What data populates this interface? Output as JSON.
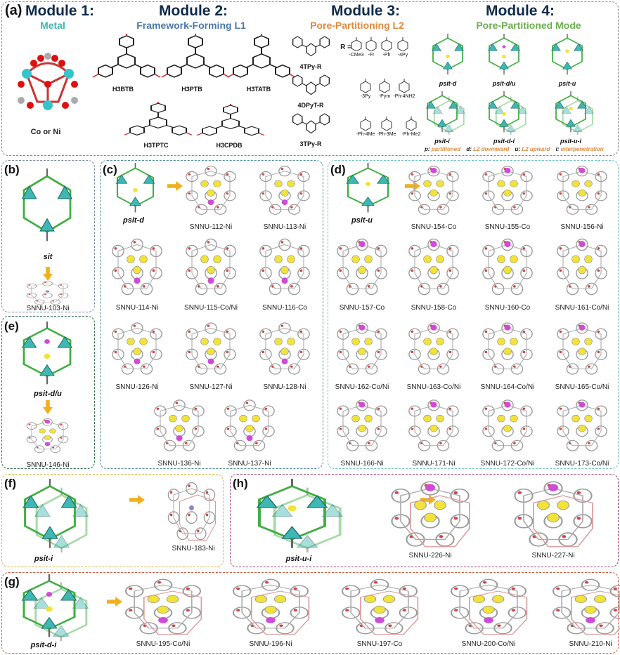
{
  "colors": {
    "module_title": "#0f2a4a",
    "metal": "#3fb8b3",
    "l1": "#4a78a8",
    "l2": "#e08a3c",
    "mode": "#6ab04c",
    "net_green": "#3fae3f",
    "cluster_teal": "#3fb8b3",
    "yellow": "#f2e33a",
    "pink": "#d04ad8",
    "arrow": "#f0b020"
  },
  "panel_a": {
    "label": "(a)",
    "module1": {
      "title": "Module 1:",
      "subtitle": "Metal",
      "metal_label": "Co or Ni"
    },
    "module2": {
      "title": "Module 2:",
      "subtitle": "Framework-Forming L1",
      "ligands": [
        "H3BTB",
        "H3PTB",
        "H3TATB",
        "H3TPTC",
        "H3CPDB"
      ]
    },
    "module3": {
      "title": "Module 3:",
      "subtitle": "Pore-Partitioning L2",
      "ligands": [
        "4TPy-R",
        "4DPyT-R",
        "3TPy-R"
      ],
      "r_prefix": "R =",
      "r_groups": [
        "-CMe3",
        "-Fr",
        "-Ph",
        "-4Py",
        "-3Py",
        "-Pym",
        "-Ph-4NH2",
        "-Ph-4Me",
        "-Ph-3Me",
        "-Ph-Me2"
      ]
    },
    "module4": {
      "title": "Module 4:",
      "subtitle": "Pore-Partitioned Mode",
      "modes": [
        "psit-d",
        "psit-d/u",
        "psit-u",
        "psit-i",
        "psit-d-i",
        "psit-u-i"
      ],
      "legend": [
        {
          "k": "p:",
          "v": "partitioned"
        },
        {
          "k": "d:",
          "v": "L2 downward"
        },
        {
          "k": "u:",
          "v": "L2 upward"
        },
        {
          "k": "i:",
          "v": "interpenetration"
        }
      ]
    }
  },
  "panel_b": {
    "label": "(b)",
    "net": "sit",
    "items": [
      "SNNU-103-Ni"
    ]
  },
  "panel_e": {
    "label": "(e)",
    "net": "psit-d/u",
    "items": [
      "SNNU-146-Ni"
    ]
  },
  "panel_c": {
    "label": "(c)",
    "net": "psit-d",
    "items": [
      "SNNU-112-Ni",
      "SNNU-113-Ni",
      "SNNU-114-Ni",
      "SNNU-115-Co/Ni",
      "SNNU-116-Co",
      "SNNU-126-Ni",
      "SNNU-127-Ni",
      "SNNU-128-Ni",
      "SNNU-136-Ni",
      "SNNU-137-Ni"
    ]
  },
  "panel_d": {
    "label": "(d)",
    "net": "psit-u",
    "items": [
      "SNNU-154-Co",
      "SNNU-155-Co",
      "SNNU-156-Ni",
      "SNNU-157-Co",
      "SNNU-158-Co",
      "SNNU-160-Co",
      "SNNU-161-Co/Ni",
      "SNNU-162-Co/Ni",
      "SNNU-163-Co/Ni",
      "SNNU-164-Co/Ni",
      "SNNU-165-Co/Ni",
      "SNNU-166-Ni",
      "SNNU-171-Ni",
      "SNNU-172-Co/Ni",
      "SNNU-173-Co/Ni"
    ]
  },
  "panel_f": {
    "label": "(f)",
    "net": "psit-i",
    "items": [
      "SNNU-183-Ni"
    ]
  },
  "panel_h": {
    "label": "(h)",
    "net": "psit-u-i",
    "items": [
      "SNNU-226-Ni",
      "SNNU-227-Ni"
    ]
  },
  "panel_g": {
    "label": "(g)",
    "net": "psit-d-i",
    "items": [
      "SNNU-195-Co/Ni",
      "SNNU-196-Ni",
      "SNNU-197-Co",
      "SNNU-200-Co/Ni",
      "SNNU-210-Ni"
    ]
  }
}
